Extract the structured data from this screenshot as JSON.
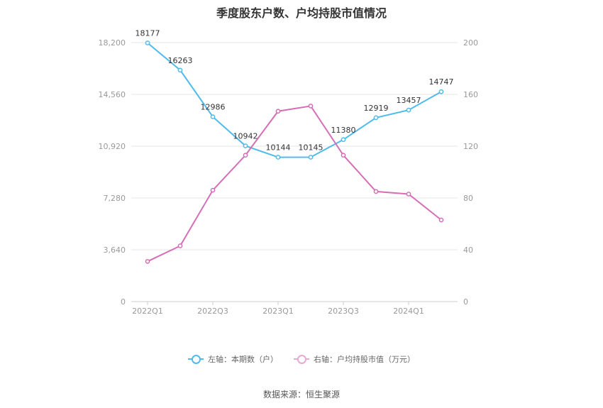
{
  "title": "季度股东户数、户均持股市值情况",
  "source": "数据来源：恒生聚源",
  "chart_data": {
    "type": "line",
    "title": "季度股东户数、户均持股市值情况",
    "x": [
      "2022Q1",
      "2022Q2",
      "2022Q3",
      "2022Q4",
      "2023Q1",
      "2023Q2",
      "2023Q3",
      "2023Q4",
      "2024Q1",
      "2024Q2"
    ],
    "x_tick_labels": [
      "2022Q1",
      "2022Q3",
      "2023Q1",
      "2023Q3",
      "2024Q1"
    ],
    "left_axis": {
      "ylim": [
        0,
        18200
      ],
      "ticks": [
        "0",
        "3,640",
        "7,280",
        "10,920",
        "14,560",
        "18,200"
      ]
    },
    "right_axis": {
      "ylim": [
        0,
        200
      ],
      "ticks": [
        "0",
        "40",
        "80",
        "120",
        "160",
        "200"
      ]
    },
    "series": [
      {
        "name": "左轴：本期数（户）",
        "axis": "left",
        "color": "#4fbbeb",
        "values": [
          18177,
          16263,
          12986,
          10942,
          10144,
          10145,
          11380,
          12919,
          13457,
          14747
        ],
        "labels": [
          "18177",
          "16263",
          "12986",
          "10942",
          "10144",
          "10145",
          "11380",
          "12919",
          "13457",
          "14747"
        ]
      },
      {
        "name": "右轴：户均持股市值（万元）",
        "axis": "right",
        "color": "#d46fb7",
        "values": [
          31,
          43,
          86,
          113,
          147,
          151,
          113,
          85,
          83,
          63
        ]
      }
    ],
    "grid": true,
    "legend": "bottom-center"
  }
}
